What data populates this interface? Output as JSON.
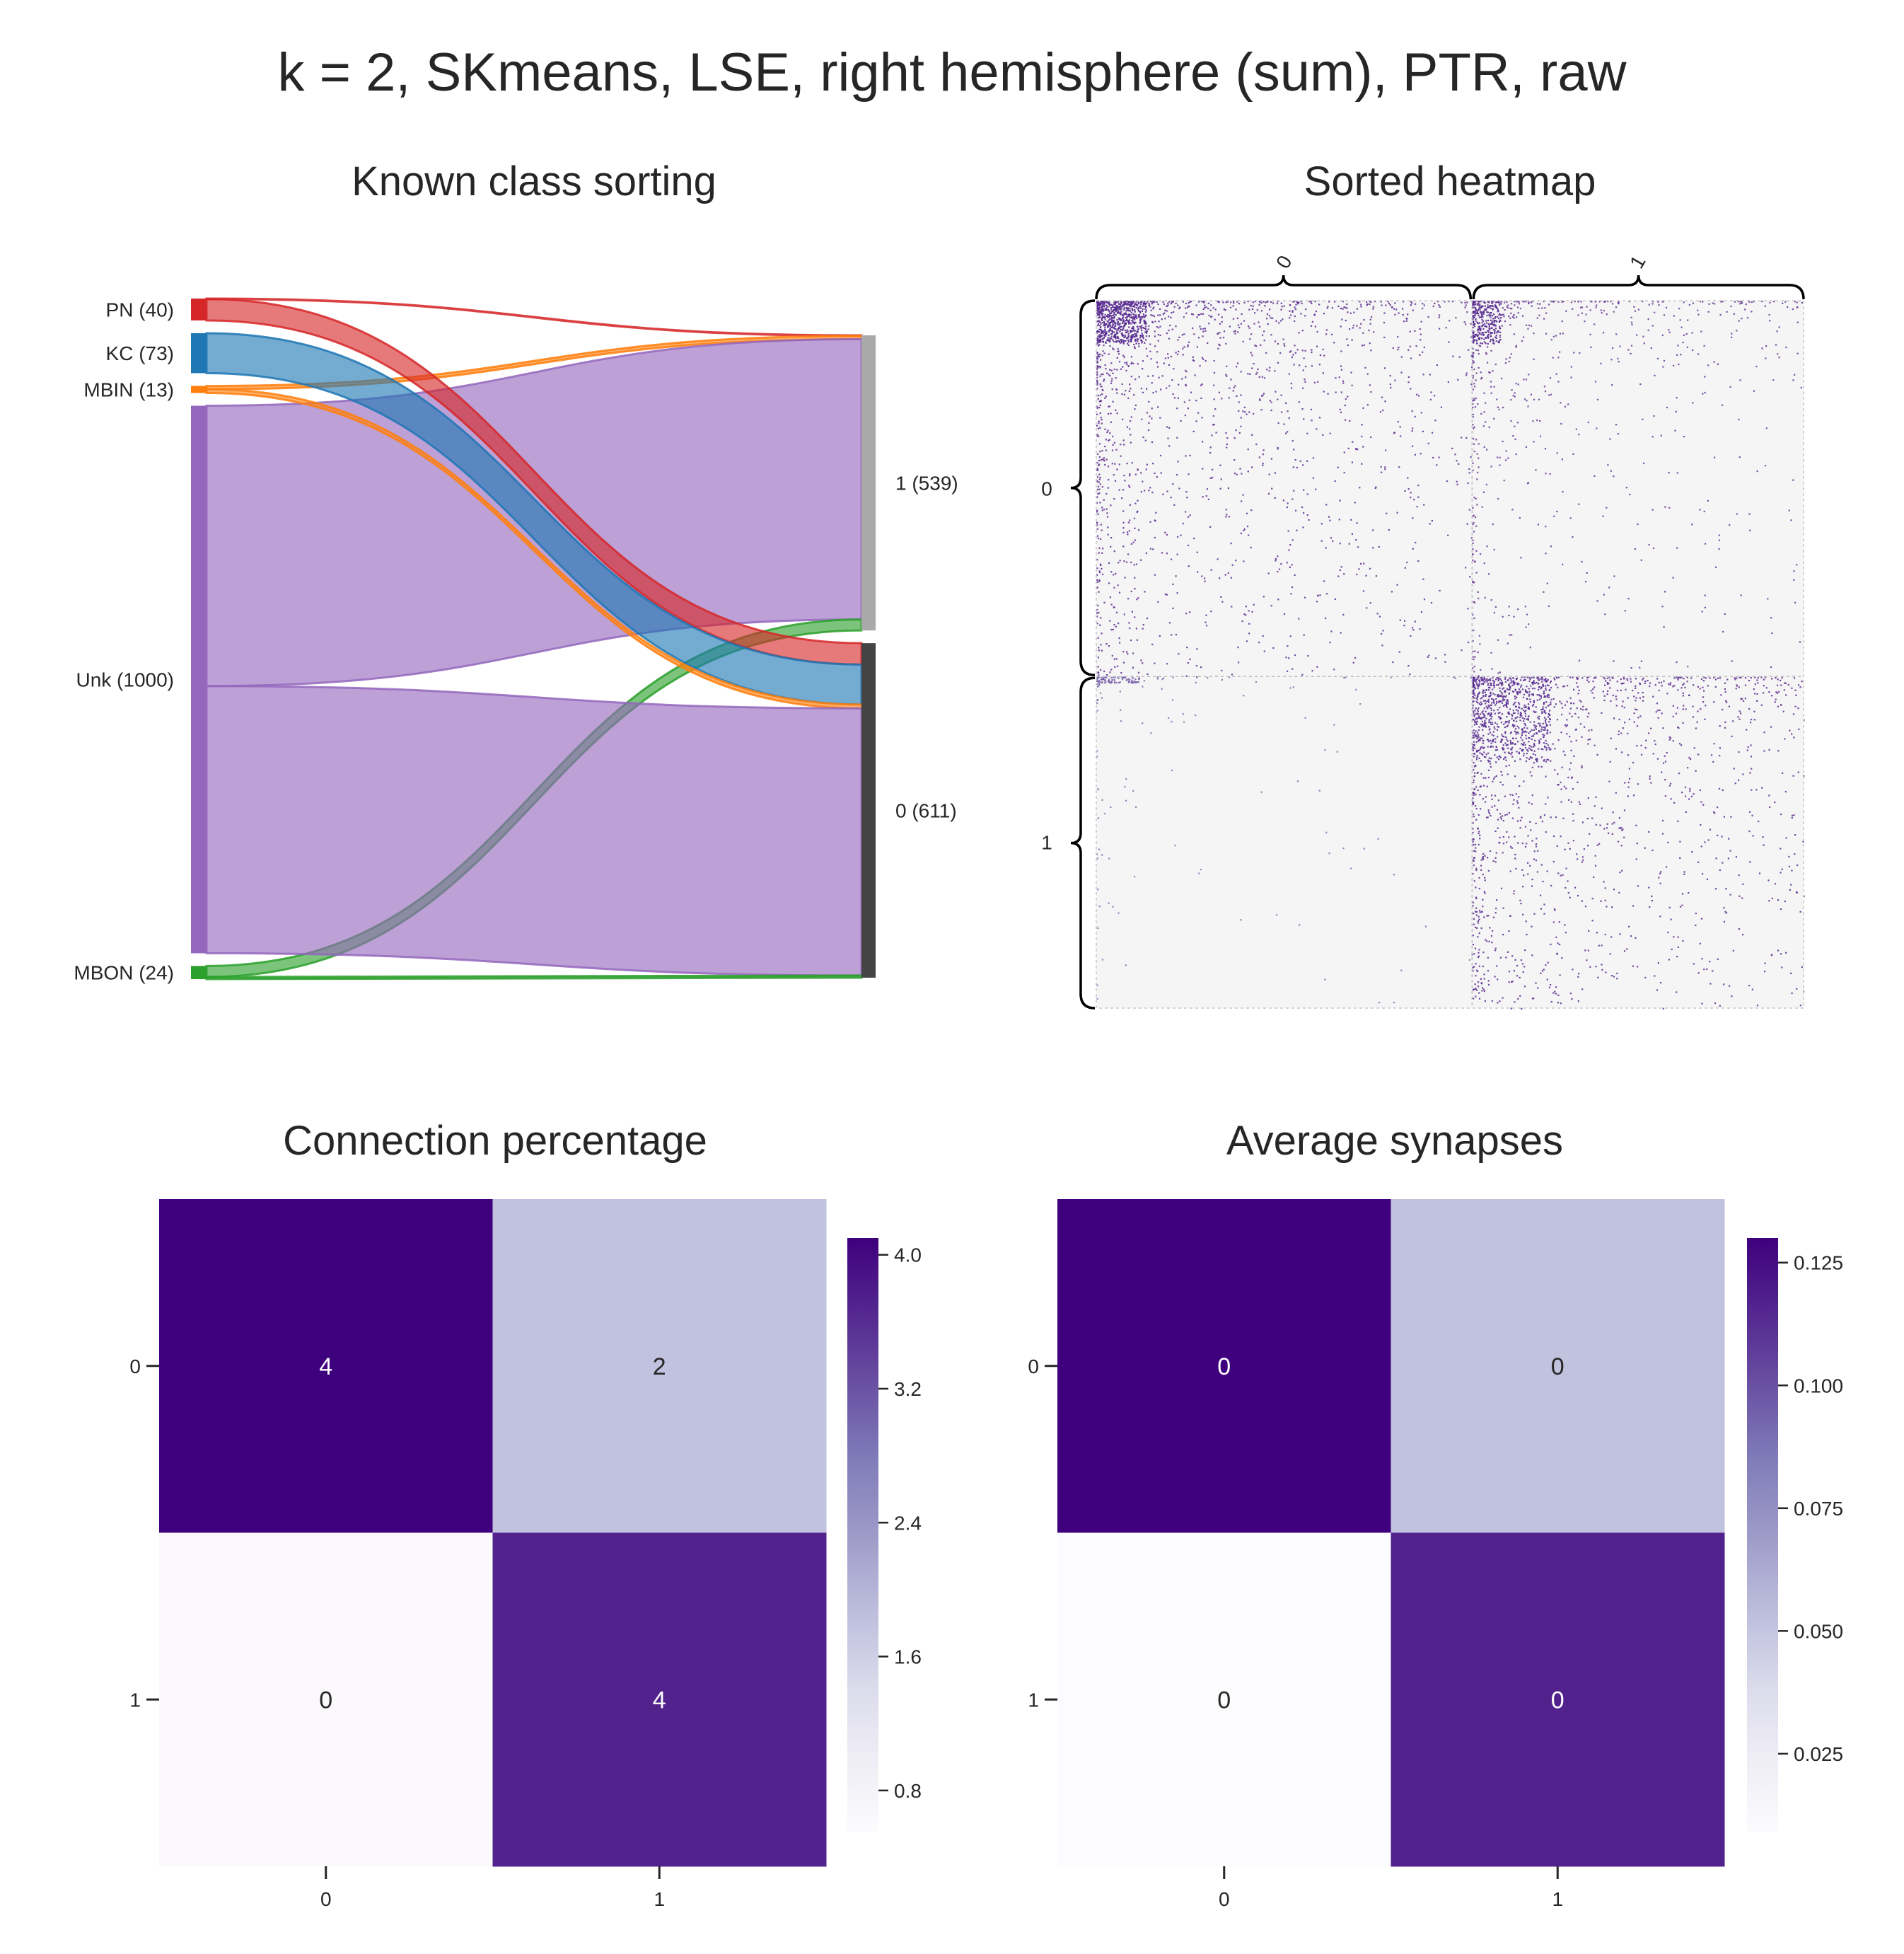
{
  "suptitle": "k = 2, SKmeans, LSE, right hemisphere (sum), PTR, raw",
  "panels": {
    "sankey_title": "Known class sorting",
    "heatmap_title": "Sorted heatmap",
    "conn_title": "Connection percentage",
    "syn_title": "Average synapses"
  },
  "chart_data": [
    {
      "type": "sankey",
      "title": "Known class sorting",
      "sources": [
        {
          "label": "PN (40)",
          "name": "PN",
          "count": 40,
          "color": "#d62728"
        },
        {
          "label": "KC (73)",
          "name": "KC",
          "count": 73,
          "color": "#1f77b4"
        },
        {
          "label": "MBIN (13)",
          "name": "MBIN",
          "count": 13,
          "color": "#ff7f0e"
        },
        {
          "label": "Unk (1000)",
          "name": "Unk",
          "count": 1000,
          "color": "#9467bd"
        },
        {
          "label": "MBON (24)",
          "name": "MBON",
          "count": 24,
          "color": "#2ca02c"
        }
      ],
      "targets": [
        {
          "label": "1 (539)",
          "name": "1",
          "count": 539,
          "color": "#a9a9a9"
        },
        {
          "label": "0 (611)",
          "name": "0",
          "count": 611,
          "color": "#444444"
        }
      ],
      "flows": [
        {
          "source": "PN",
          "target": "1",
          "value": 1
        },
        {
          "source": "PN",
          "target": "0",
          "value": 39
        },
        {
          "source": "KC",
          "target": "0",
          "value": 73
        },
        {
          "source": "MBIN",
          "target": "1",
          "value": 6
        },
        {
          "source": "MBIN",
          "target": "0",
          "value": 7
        },
        {
          "source": "Unk",
          "target": "1",
          "value": 512
        },
        {
          "source": "Unk",
          "target": "0",
          "value": 488
        },
        {
          "source": "MBON",
          "target": "1",
          "value": 20
        },
        {
          "source": "MBON",
          "target": "0",
          "value": 4
        }
      ]
    },
    {
      "type": "heatmap",
      "title": "Sorted heatmap",
      "description": "adjacency",
      "row_groups": [
        {
          "label": "0",
          "size": 611
        },
        {
          "label": "1",
          "size": 539
        }
      ],
      "col_groups": [
        {
          "label": "0",
          "size": 611
        },
        {
          "label": "1",
          "size": 539
        }
      ]
    },
    {
      "type": "heatmap",
      "title": "Connection percentage",
      "xticklabels": [
        "0",
        "1"
      ],
      "yticklabels": [
        "0",
        "1"
      ],
      "values": [
        [
          4.1,
          1.8
        ],
        [
          0.6,
          3.7
        ]
      ],
      "annotations": [
        [
          "4",
          "2"
        ],
        [
          "0",
          "4"
        ]
      ],
      "annotation_colors": [
        [
          "#ffffff",
          "#262626"
        ],
        [
          "#262626",
          "#ffffff"
        ]
      ],
      "colorbar": {
        "min": 0.55,
        "max": 4.1,
        "ticks": [
          0.8,
          1.6,
          2.4,
          3.2,
          4.0
        ],
        "ticklabels": [
          "0.8",
          "1.6",
          "2.4",
          "3.2",
          "4.0"
        ],
        "colormap": "Purples"
      }
    },
    {
      "type": "heatmap",
      "title": "Average synapses",
      "xticklabels": [
        "0",
        "1"
      ],
      "yticklabels": [
        "0",
        "1"
      ],
      "values": [
        [
          0.13,
          0.052
        ],
        [
          0.009,
          0.117
        ]
      ],
      "annotations": [
        [
          "0",
          "0"
        ],
        [
          "0",
          "0"
        ]
      ],
      "annotation_colors": [
        [
          "#ffffff",
          "#262626"
        ],
        [
          "#262626",
          "#ffffff"
        ]
      ],
      "colorbar": {
        "min": 0.009,
        "max": 0.13,
        "ticks": [
          0.025,
          0.05,
          0.075,
          0.1,
          0.125
        ],
        "ticklabels": [
          "0.025",
          "0.050",
          "0.075",
          "0.100",
          "0.125"
        ],
        "colormap": "Purples"
      }
    }
  ]
}
